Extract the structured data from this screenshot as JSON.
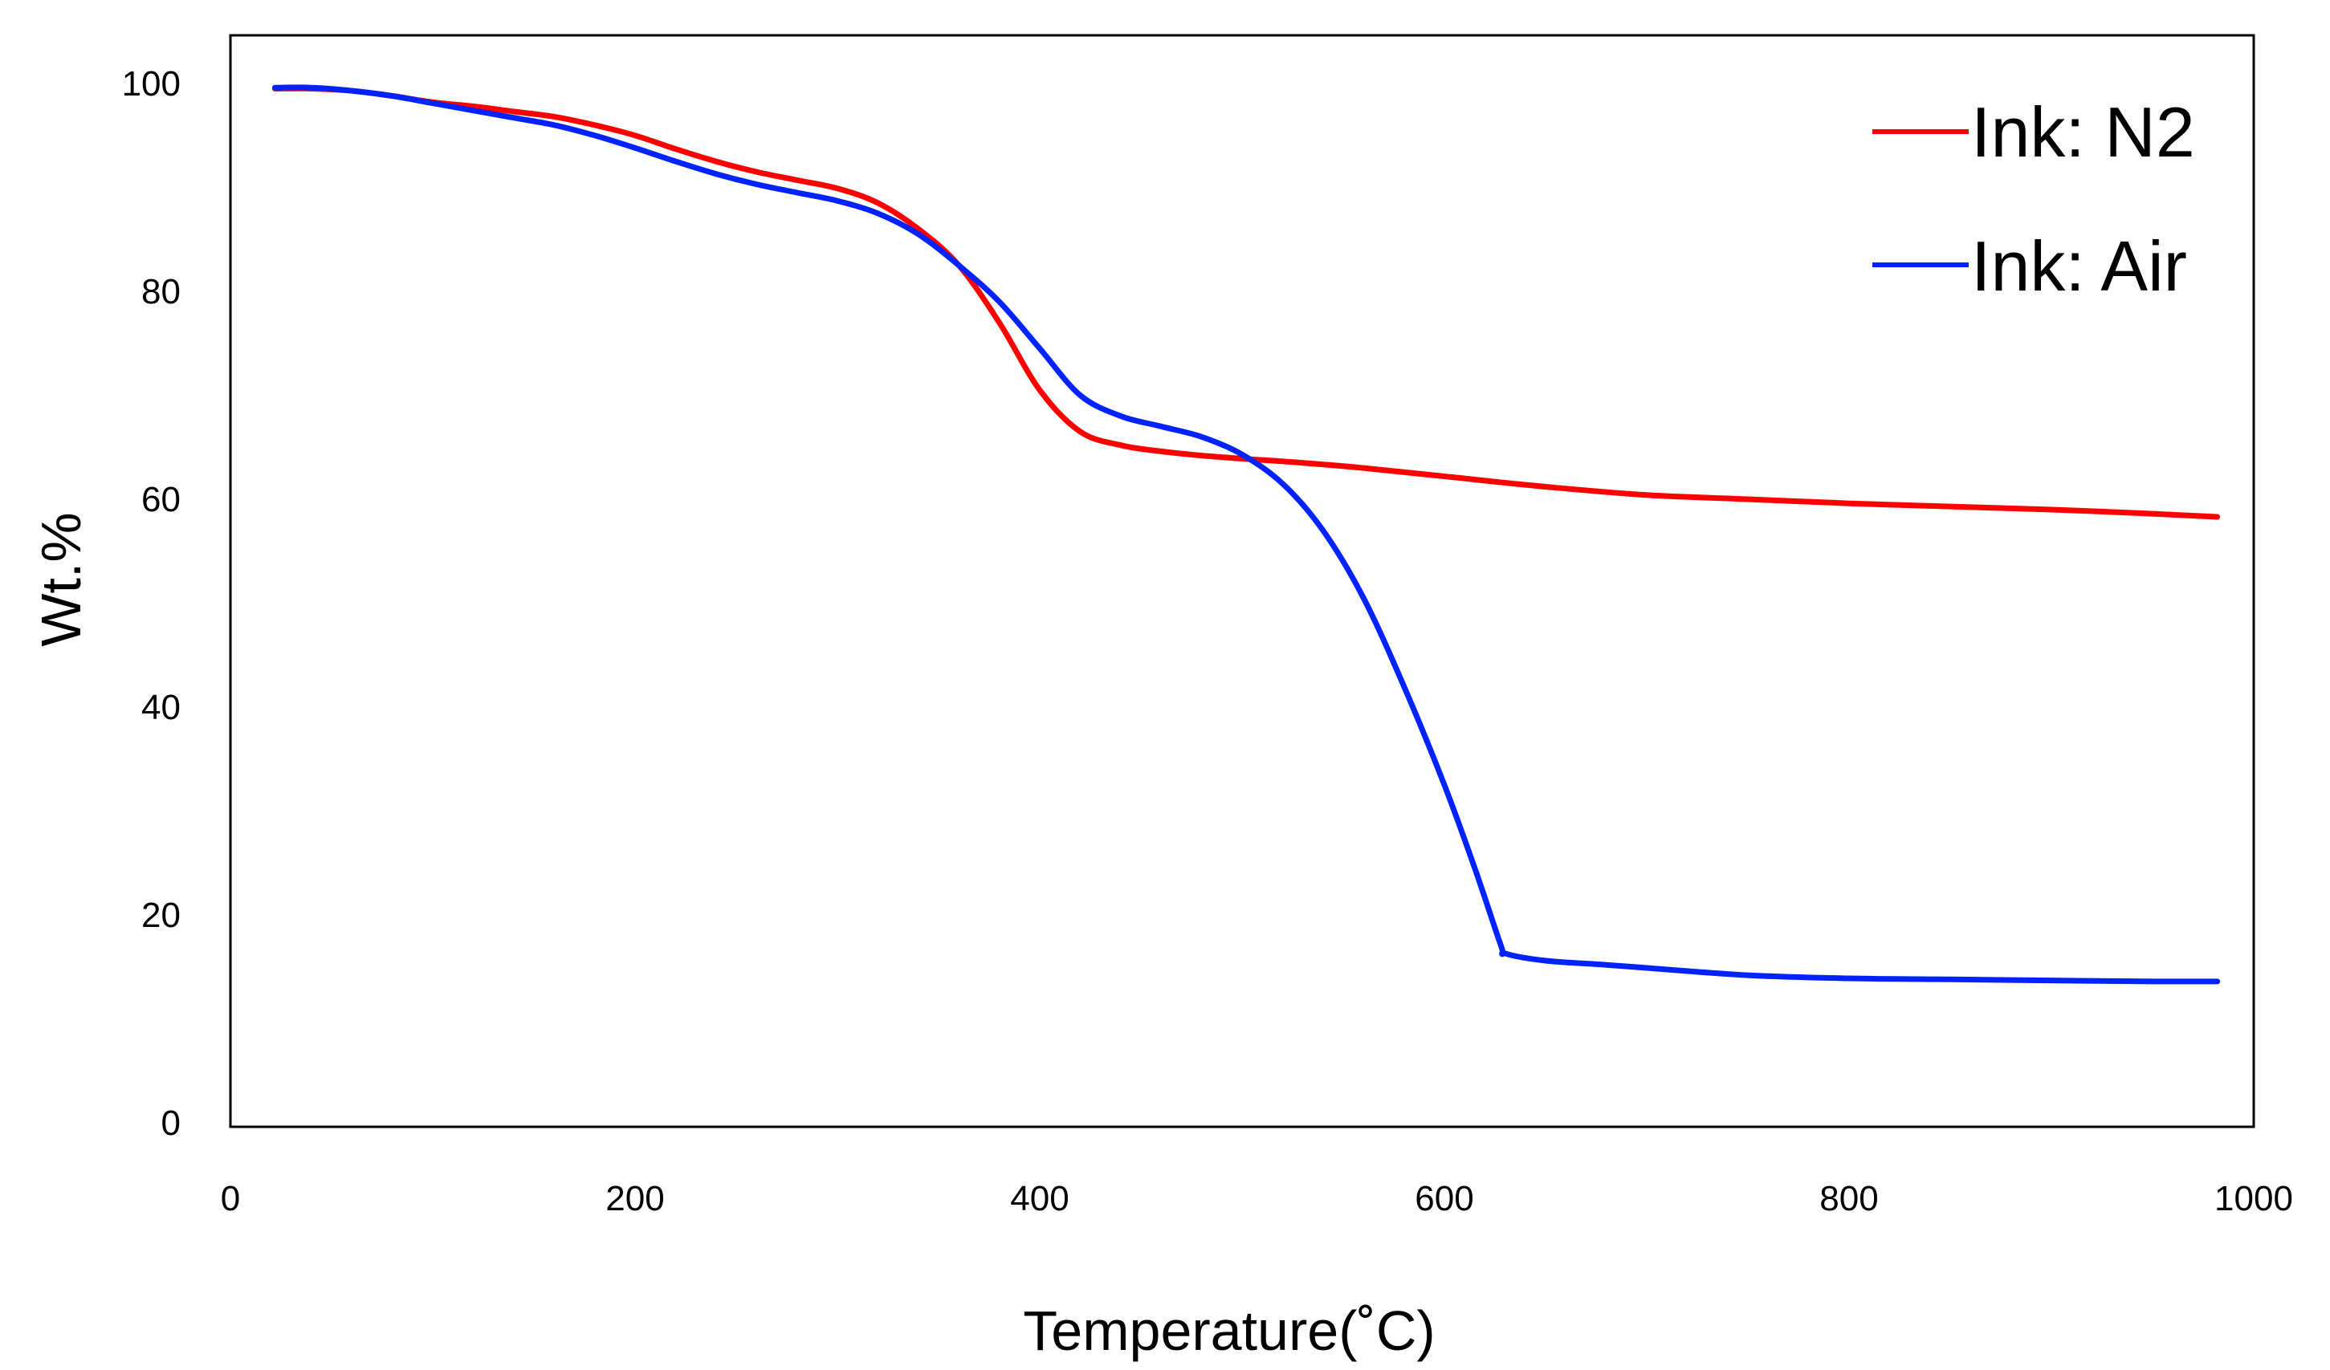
{
  "chart_data": {
    "type": "line",
    "title": "",
    "xlabel": "Temperature(˚C)",
    "ylabel": "Wt.%",
    "xlim": [
      0,
      1000
    ],
    "ylim": [
      0,
      100
    ],
    "x_ticks": [
      0,
      200,
      400,
      600,
      800,
      1000
    ],
    "y_ticks": [
      0,
      20,
      40,
      60,
      80,
      100
    ],
    "x_tick_labels": [
      "0",
      "200",
      "400",
      "600",
      "800",
      "1000"
    ],
    "y_tick_labels": [
      "0",
      "20",
      "40",
      "60",
      "80",
      "100"
    ],
    "grid": false,
    "legend_position": "top-right",
    "series": [
      {
        "name": "Ink: N2",
        "color": "#ff0000",
        "points": [
          [
            22,
            99.5
          ],
          [
            40,
            99.5
          ],
          [
            60,
            99.3
          ],
          [
            80,
            98.8
          ],
          [
            100,
            98.2
          ],
          [
            120,
            97.8
          ],
          [
            140,
            97.3
          ],
          [
            160,
            96.8
          ],
          [
            180,
            96.0
          ],
          [
            200,
            95.0
          ],
          [
            220,
            93.7
          ],
          [
            240,
            92.5
          ],
          [
            260,
            91.5
          ],
          [
            280,
            90.7
          ],
          [
            300,
            89.9
          ],
          [
            320,
            88.5
          ],
          [
            340,
            86.0
          ],
          [
            360,
            82.5
          ],
          [
            380,
            77.0
          ],
          [
            400,
            70.5
          ],
          [
            420,
            66.5
          ],
          [
            440,
            65.2
          ],
          [
            460,
            64.6
          ],
          [
            480,
            64.2
          ],
          [
            500,
            63.9
          ],
          [
            530,
            63.5
          ],
          [
            560,
            63.0
          ],
          [
            600,
            62.2
          ],
          [
            650,
            61.2
          ],
          [
            700,
            60.4
          ],
          [
            750,
            60.0
          ],
          [
            800,
            59.6
          ],
          [
            850,
            59.3
          ],
          [
            900,
            59.0
          ],
          [
            950,
            58.6
          ],
          [
            982,
            58.3
          ]
        ]
      },
      {
        "name": "Ink: Air",
        "color": "#0022ff",
        "points": [
          [
            22,
            99.6
          ],
          [
            40,
            99.6
          ],
          [
            60,
            99.3
          ],
          [
            80,
            98.8
          ],
          [
            100,
            98.1
          ],
          [
            120,
            97.4
          ],
          [
            140,
            96.7
          ],
          [
            160,
            96.0
          ],
          [
            180,
            95.0
          ],
          [
            200,
            93.8
          ],
          [
            220,
            92.5
          ],
          [
            240,
            91.3
          ],
          [
            260,
            90.3
          ],
          [
            280,
            89.5
          ],
          [
            300,
            88.7
          ],
          [
            320,
            87.5
          ],
          [
            340,
            85.5
          ],
          [
            360,
            82.5
          ],
          [
            380,
            79.0
          ],
          [
            400,
            74.5
          ],
          [
            420,
            70.0
          ],
          [
            440,
            68.0
          ],
          [
            460,
            67.0
          ],
          [
            480,
            66.0
          ],
          [
            500,
            64.3
          ],
          [
            520,
            61.5
          ],
          [
            540,
            57.0
          ],
          [
            560,
            50.5
          ],
          [
            580,
            42.0
          ],
          [
            600,
            32.5
          ],
          [
            615,
            24.5
          ],
          [
            628,
            17.0
          ],
          [
            630,
            16.3
          ],
          [
            650,
            15.6
          ],
          [
            680,
            15.2
          ],
          [
            700,
            14.9
          ],
          [
            750,
            14.2
          ],
          [
            800,
            13.9
          ],
          [
            850,
            13.8
          ],
          [
            900,
            13.7
          ],
          [
            950,
            13.6
          ],
          [
            982,
            13.6
          ]
        ]
      }
    ]
  }
}
